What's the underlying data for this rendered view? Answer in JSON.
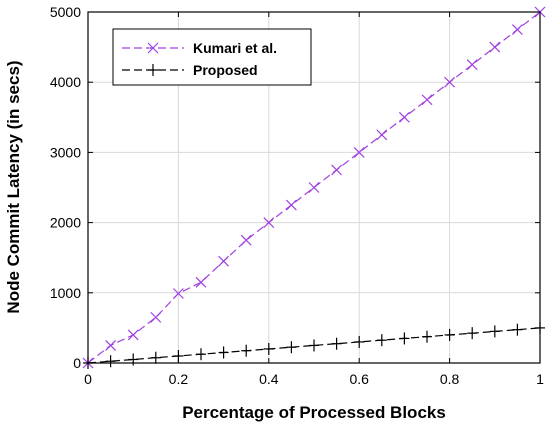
{
  "chart_data": {
    "type": "line",
    "title": "",
    "xlabel": "Percentage of Processed Blocks",
    "ylabel": "Node Commit Latency (in secs)",
    "xlim": [
      0,
      1
    ],
    "ylim": [
      0,
      5000
    ],
    "x_ticks": [
      "0",
      "0.2",
      "0.4",
      "0.6",
      "0.8",
      "1"
    ],
    "y_ticks": [
      "0",
      "1000",
      "2000",
      "3000",
      "4000",
      "5000"
    ],
    "grid": true,
    "legend_position": "top-left",
    "series": [
      {
        "name": "Kumari et al.",
        "color": "#a040e0",
        "marker": "asterisk",
        "line_style": "dashed",
        "x": [
          0,
          0.05,
          0.1,
          0.15,
          0.2,
          0.25,
          0.3,
          0.35,
          0.4,
          0.45,
          0.5,
          0.55,
          0.6,
          0.65,
          0.7,
          0.75,
          0.8,
          0.85,
          0.9,
          0.95,
          1.0
        ],
        "values": [
          0,
          250,
          400,
          650,
          990,
          1150,
          1450,
          1750,
          2000,
          2250,
          2500,
          2750,
          3000,
          3250,
          3500,
          3750,
          4000,
          4250,
          4500,
          4750,
          5000
        ]
      },
      {
        "name": "Proposed",
        "color": "#000000",
        "marker": "plus",
        "line_style": "dashed",
        "x": [
          0,
          0.05,
          0.1,
          0.15,
          0.2,
          0.25,
          0.3,
          0.35,
          0.4,
          0.45,
          0.5,
          0.55,
          0.6,
          0.65,
          0.7,
          0.75,
          0.8,
          0.85,
          0.9,
          0.95,
          1.0
        ],
        "values": [
          0,
          25,
          50,
          75,
          100,
          125,
          150,
          175,
          200,
          225,
          250,
          275,
          300,
          325,
          350,
          375,
          400,
          425,
          450,
          475,
          500
        ]
      }
    ]
  }
}
